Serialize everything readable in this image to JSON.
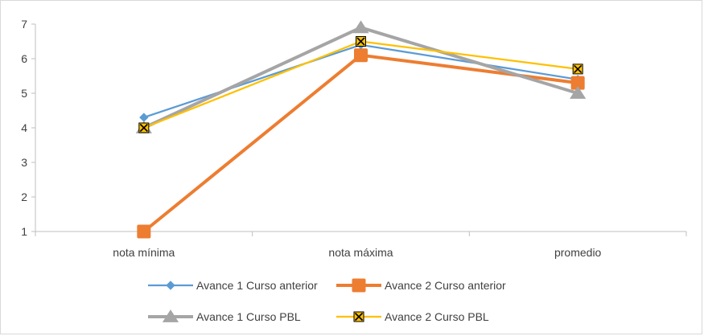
{
  "chart_data": {
    "type": "line",
    "categories": [
      "nota mínima",
      "nota máxima",
      "promedio"
    ],
    "ylim": [
      1,
      7
    ],
    "yticks": [
      1,
      2,
      3,
      4,
      5,
      6,
      7
    ],
    "grid": false,
    "legend_position": "bottom",
    "series": [
      {
        "name": "Avance 1 Curso anterior",
        "values": [
          4.3,
          6.4,
          5.4
        ],
        "color": "#5b9bd5",
        "marker": "diamond"
      },
      {
        "name": "Avance 2 Curso anterior",
        "values": [
          1.0,
          6.1,
          5.3
        ],
        "color": "#ed7d31",
        "marker": "square"
      },
      {
        "name": "Avance 1 Curso PBL",
        "values": [
          4.0,
          6.9,
          5.0
        ],
        "color": "#a5a5a5",
        "marker": "triangle"
      },
      {
        "name": "Avance 2 Curso PBL",
        "values": [
          4.0,
          6.5,
          5.7
        ],
        "color": "#ffc000",
        "marker": "x-square"
      }
    ]
  }
}
